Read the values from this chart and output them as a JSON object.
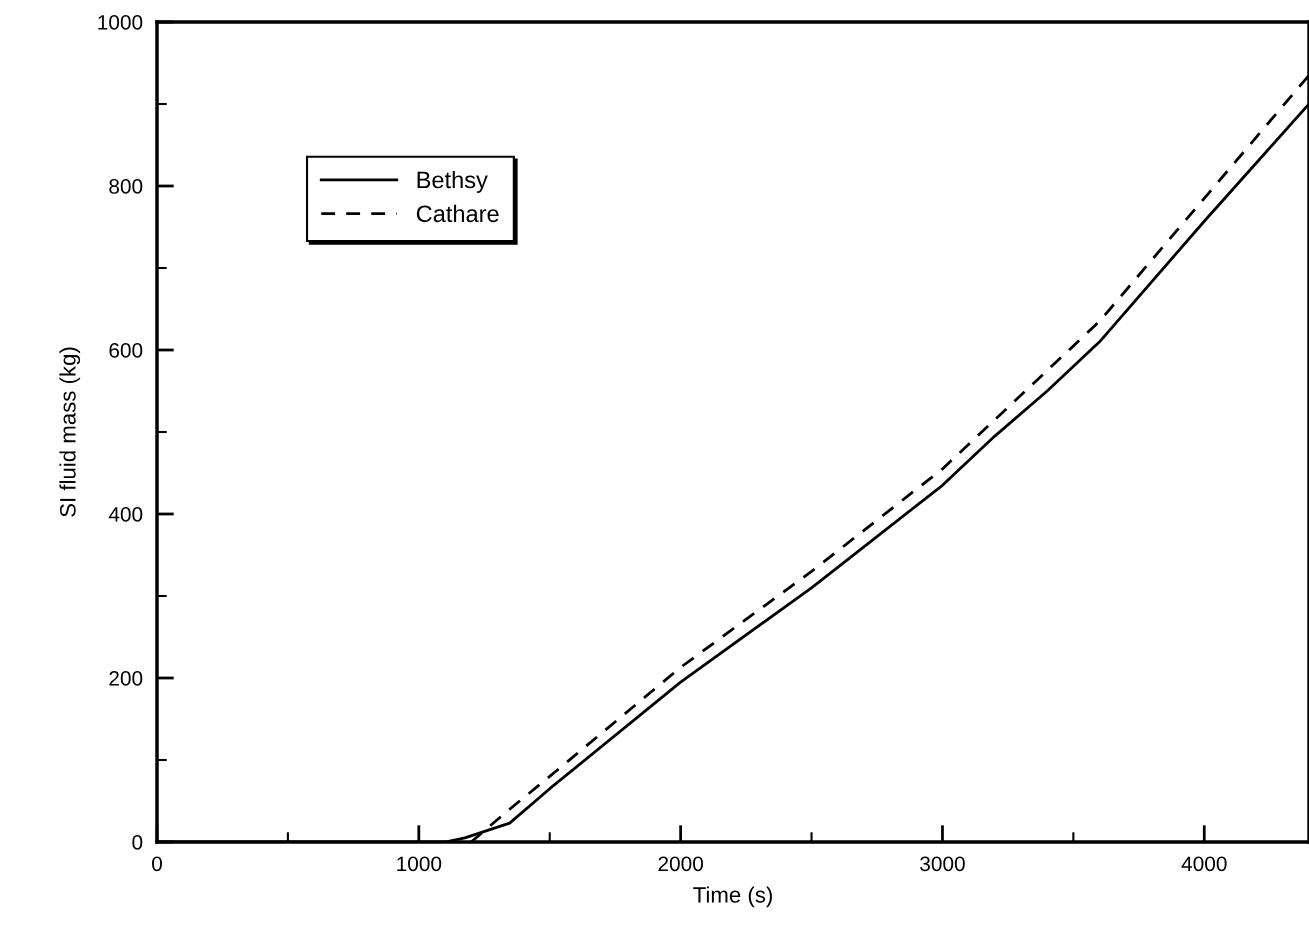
{
  "chart_data": {
    "type": "line",
    "xlabel": "Time (s)",
    "ylabel": "SI fluid mass (kg)",
    "xlim": [
      0,
      4400
    ],
    "ylim": [
      0,
      1000
    ],
    "xticks": [
      0,
      {
        "value": 500,
        "label": null
      },
      1000,
      {
        "value": 1500,
        "label": null
      },
      2000,
      {
        "value": 2500,
        "label": null
      },
      3000,
      {
        "value": 3500,
        "label": null
      },
      4000
    ],
    "yticks": [
      0,
      {
        "value": 100,
        "label": null
      },
      200,
      {
        "value": 300,
        "label": null
      },
      400,
      {
        "value": 500,
        "label": null
      },
      600,
      {
        "value": 700,
        "label": null
      },
      800,
      {
        "value": 900,
        "label": null
      },
      1000
    ],
    "legend": "top left",
    "grid": false,
    "series": [
      {
        "name": "Bethsy",
        "color": "#000000",
        "line_style": "solid",
        "x": [
          0,
          1100,
          1176,
          1347,
          1500,
          2000,
          2500,
          3000,
          3200,
          3400,
          3600,
          4000,
          4400
        ],
        "values": [
          0,
          0,
          5,
          23,
          65,
          195,
          310,
          435,
          495,
          550,
          610,
          757,
          900
        ]
      },
      {
        "name": "Cathare",
        "color": "#000000",
        "line_style": "dashed",
        "x": [
          1200,
          1347,
          1500,
          2000,
          2500,
          3000,
          3600,
          4000,
          4400
        ],
        "values": [
          0,
          40,
          80,
          213,
          330,
          455,
          635,
          785,
          935
        ]
      }
    ]
  }
}
